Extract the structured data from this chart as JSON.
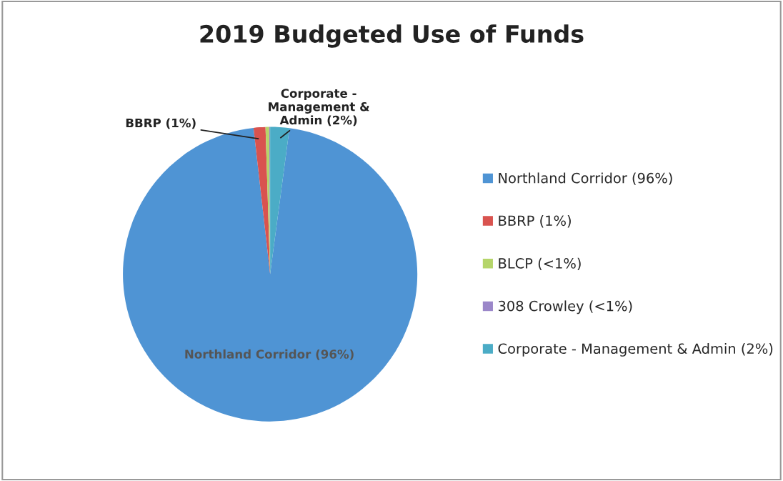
{
  "chart_data": {
    "type": "pie",
    "title": "2019 Budgeted Use of Funds",
    "categories": [
      "Northland Corridor (96%)",
      "BBRP (1%)",
      "BLCP (<1%)",
      "308 Crowley (<1%)",
      "Corporate - Management & Admin (2%)"
    ],
    "values": [
      96.1,
      1.3,
      0.4,
      0.1,
      2.1
    ],
    "colors": [
      "#4f94d4",
      "#d9534f",
      "#b5d56a",
      "#9b87c9",
      "#4bacc6"
    ],
    "value_labels": [
      "Northland Corridor (96%)",
      "BBRP (1%)",
      null,
      null,
      "Corporate -\nManagement &\nAdmin (2%)"
    ],
    "legend": "right"
  }
}
